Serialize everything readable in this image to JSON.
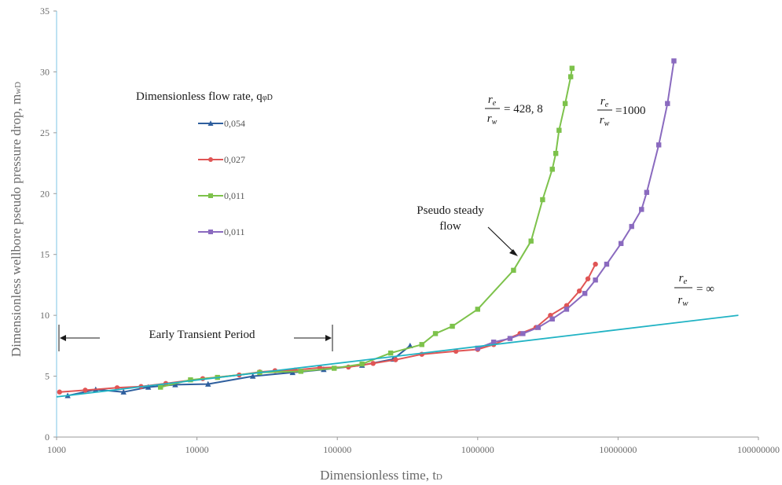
{
  "chart_data": {
    "type": "line",
    "title": "",
    "xlabel": "Dimensionless time, t",
    "xlabel_sub": "D",
    "ylabel": "Dimensionless wellbore pseudo pressure drop, m",
    "ylabel_sub": "wD",
    "x_scale": "log",
    "xlim": [
      1000,
      100000000
    ],
    "ylim": [
      0,
      35
    ],
    "grid": false,
    "x_ticks": [
      {
        "value": 1000,
        "label": "1000"
      },
      {
        "value": 10000,
        "label": "10000"
      },
      {
        "value": 100000,
        "label": "100000"
      },
      {
        "value": 1000000,
        "label": "1000000"
      },
      {
        "value": 10000000,
        "label": "10000000"
      },
      {
        "value": 100000000,
        "label": "100000000"
      }
    ],
    "y_ticks": [
      {
        "value": 0,
        "label": "0"
      },
      {
        "value": 5,
        "label": "5"
      },
      {
        "value": 10,
        "label": "10"
      },
      {
        "value": 15,
        "label": "15"
      },
      {
        "value": 20,
        "label": "20"
      },
      {
        "value": 25,
        "label": "25"
      },
      {
        "value": 30,
        "label": "30"
      },
      {
        "value": 35,
        "label": "35"
      }
    ],
    "legend": {
      "title": "Dimensionless flow rate, q",
      "title_sub": "φD",
      "position": "upper-left",
      "entries": [
        "0,054",
        "0,027",
        "0,011",
        "0,011"
      ]
    },
    "series": [
      {
        "name": "0,054",
        "color": "#2f5f9e",
        "marker": "triangle",
        "points": [
          [
            1200,
            3.4
          ],
          [
            1900,
            3.9
          ],
          [
            3000,
            3.7
          ],
          [
            4500,
            4.1
          ],
          [
            7000,
            4.3
          ],
          [
            12000,
            4.35
          ],
          [
            25000,
            5.0
          ],
          [
            48000,
            5.3
          ],
          [
            80000,
            5.55
          ],
          [
            150000,
            5.9
          ],
          [
            250000,
            6.4
          ],
          [
            330000,
            7.5
          ]
        ]
      },
      {
        "name": "0,027",
        "color": "#e05555",
        "marker": "circle",
        "points": [
          [
            1050,
            3.7
          ],
          [
            1600,
            3.85
          ],
          [
            2700,
            4.05
          ],
          [
            4000,
            4.15
          ],
          [
            6000,
            4.4
          ],
          [
            11000,
            4.8
          ],
          [
            20000,
            5.1
          ],
          [
            28000,
            5.35
          ],
          [
            36000,
            5.45
          ],
          [
            50000,
            5.5
          ],
          [
            75000,
            5.7
          ],
          [
            120000,
            5.75
          ],
          [
            180000,
            6.05
          ],
          [
            260000,
            6.35
          ],
          [
            400000,
            6.8
          ],
          [
            700000,
            7.05
          ],
          [
            1000000,
            7.2
          ],
          [
            1300000,
            7.6
          ],
          [
            2000000,
            8.5
          ],
          [
            2600000,
            9.0
          ],
          [
            3300000,
            10.0
          ],
          [
            4300000,
            10.8
          ],
          [
            5300000,
            12.0
          ],
          [
            6100000,
            13.0
          ],
          [
            6900000,
            14.2
          ]
        ]
      },
      {
        "name": "0,011",
        "color": "#7dc24b",
        "marker": "square",
        "points": [
          [
            5500,
            4.1
          ],
          [
            9000,
            4.7
          ],
          [
            14000,
            4.9
          ],
          [
            28000,
            5.3
          ],
          [
            55000,
            5.4
          ],
          [
            95000,
            5.65
          ],
          [
            150000,
            6.0
          ],
          [
            240000,
            6.9
          ],
          [
            400000,
            7.6
          ],
          [
            500000,
            8.5
          ],
          [
            660000,
            9.1
          ],
          [
            1000000,
            10.5
          ],
          [
            1800000,
            13.7
          ],
          [
            2400000,
            16.1
          ],
          [
            2900000,
            19.5
          ],
          [
            3400000,
            22.0
          ],
          [
            3600000,
            23.3
          ],
          [
            3800000,
            25.2
          ],
          [
            4200000,
            27.4
          ],
          [
            4600000,
            29.6
          ],
          [
            4700000,
            30.3
          ]
        ]
      },
      {
        "name": "0,011",
        "color": "#8a6abf",
        "marker": "square",
        "points": [
          [
            1000000,
            7.3
          ],
          [
            1300000,
            7.8
          ],
          [
            1700000,
            8.1
          ],
          [
            2100000,
            8.5
          ],
          [
            2700000,
            9.0
          ],
          [
            3400000,
            9.7
          ],
          [
            4300000,
            10.5
          ],
          [
            5800000,
            11.8
          ],
          [
            6900000,
            12.9
          ],
          [
            8300000,
            14.2
          ],
          [
            10500000,
            15.9
          ],
          [
            12500000,
            17.3
          ],
          [
            14700000,
            18.7
          ],
          [
            16000000,
            20.1
          ],
          [
            19500000,
            24.0
          ],
          [
            22500000,
            27.4
          ],
          [
            25000000,
            30.9
          ]
        ]
      },
      {
        "name": "",
        "color": "#21b3c4",
        "marker": "none",
        "points": [
          [
            1000,
            3.3
          ],
          [
            72000000,
            10.0
          ]
        ]
      }
    ],
    "annotations": [
      {
        "id": "ratio-428",
        "text_num": "r",
        "text_num_sub": "e",
        "text_den": "r",
        "text_den_sub": "w",
        "text_value": "= 428, 8"
      },
      {
        "id": "ratio-1000",
        "text_num": "r",
        "text_num_sub": "e",
        "text_den": "r",
        "text_den_sub": "w",
        "text_value": "=1000"
      },
      {
        "id": "ratio-inf",
        "text_num": "r",
        "text_num_sub": "e",
        "text_den": "r",
        "text_den_sub": "w",
        "text_value": "= ∞"
      },
      {
        "id": "pseudo-steady",
        "line1": "Pseudo steady",
        "line2": "flow"
      },
      {
        "id": "early-transient",
        "text": "Early Transient Period"
      }
    ]
  }
}
